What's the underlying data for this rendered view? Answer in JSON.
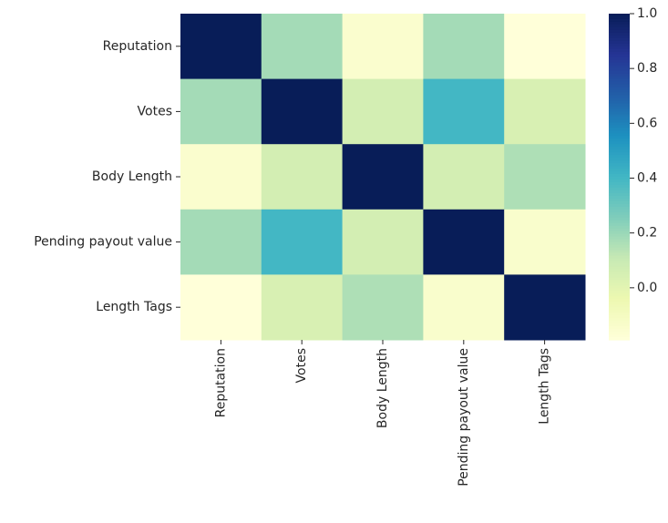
{
  "chart_data": {
    "type": "heatmap",
    "title": "",
    "xlabel": "",
    "ylabel": "",
    "rows": [
      "Reputation",
      "Votes",
      "Body Length",
      "Pending payout value",
      "Length Tags"
    ],
    "columns": [
      "Reputation",
      "Votes",
      "Body Length",
      "Pending payout value",
      "Length Tags"
    ],
    "values": [
      [
        1.0,
        0.18,
        -0.15,
        0.18,
        -0.19
      ],
      [
        0.18,
        1.0,
        0.06,
        0.4,
        0.04
      ],
      [
        -0.15,
        0.06,
        1.0,
        0.06,
        0.16
      ],
      [
        0.18,
        0.4,
        0.06,
        1.0,
        -0.14
      ],
      [
        -0.19,
        0.04,
        0.16,
        -0.14,
        1.0
      ]
    ],
    "colormap": "YlGnBu",
    "color_range": [
      -0.19,
      1.0
    ],
    "colorbar_ticks": [
      0.0,
      0.2,
      0.4,
      0.6,
      0.8,
      1.0
    ],
    "colorbar_tick_labels": [
      "0.0",
      "0.2",
      "0.4",
      "0.6",
      "0.8",
      "1.0"
    ],
    "colorbar_position": "right",
    "grid": false
  }
}
